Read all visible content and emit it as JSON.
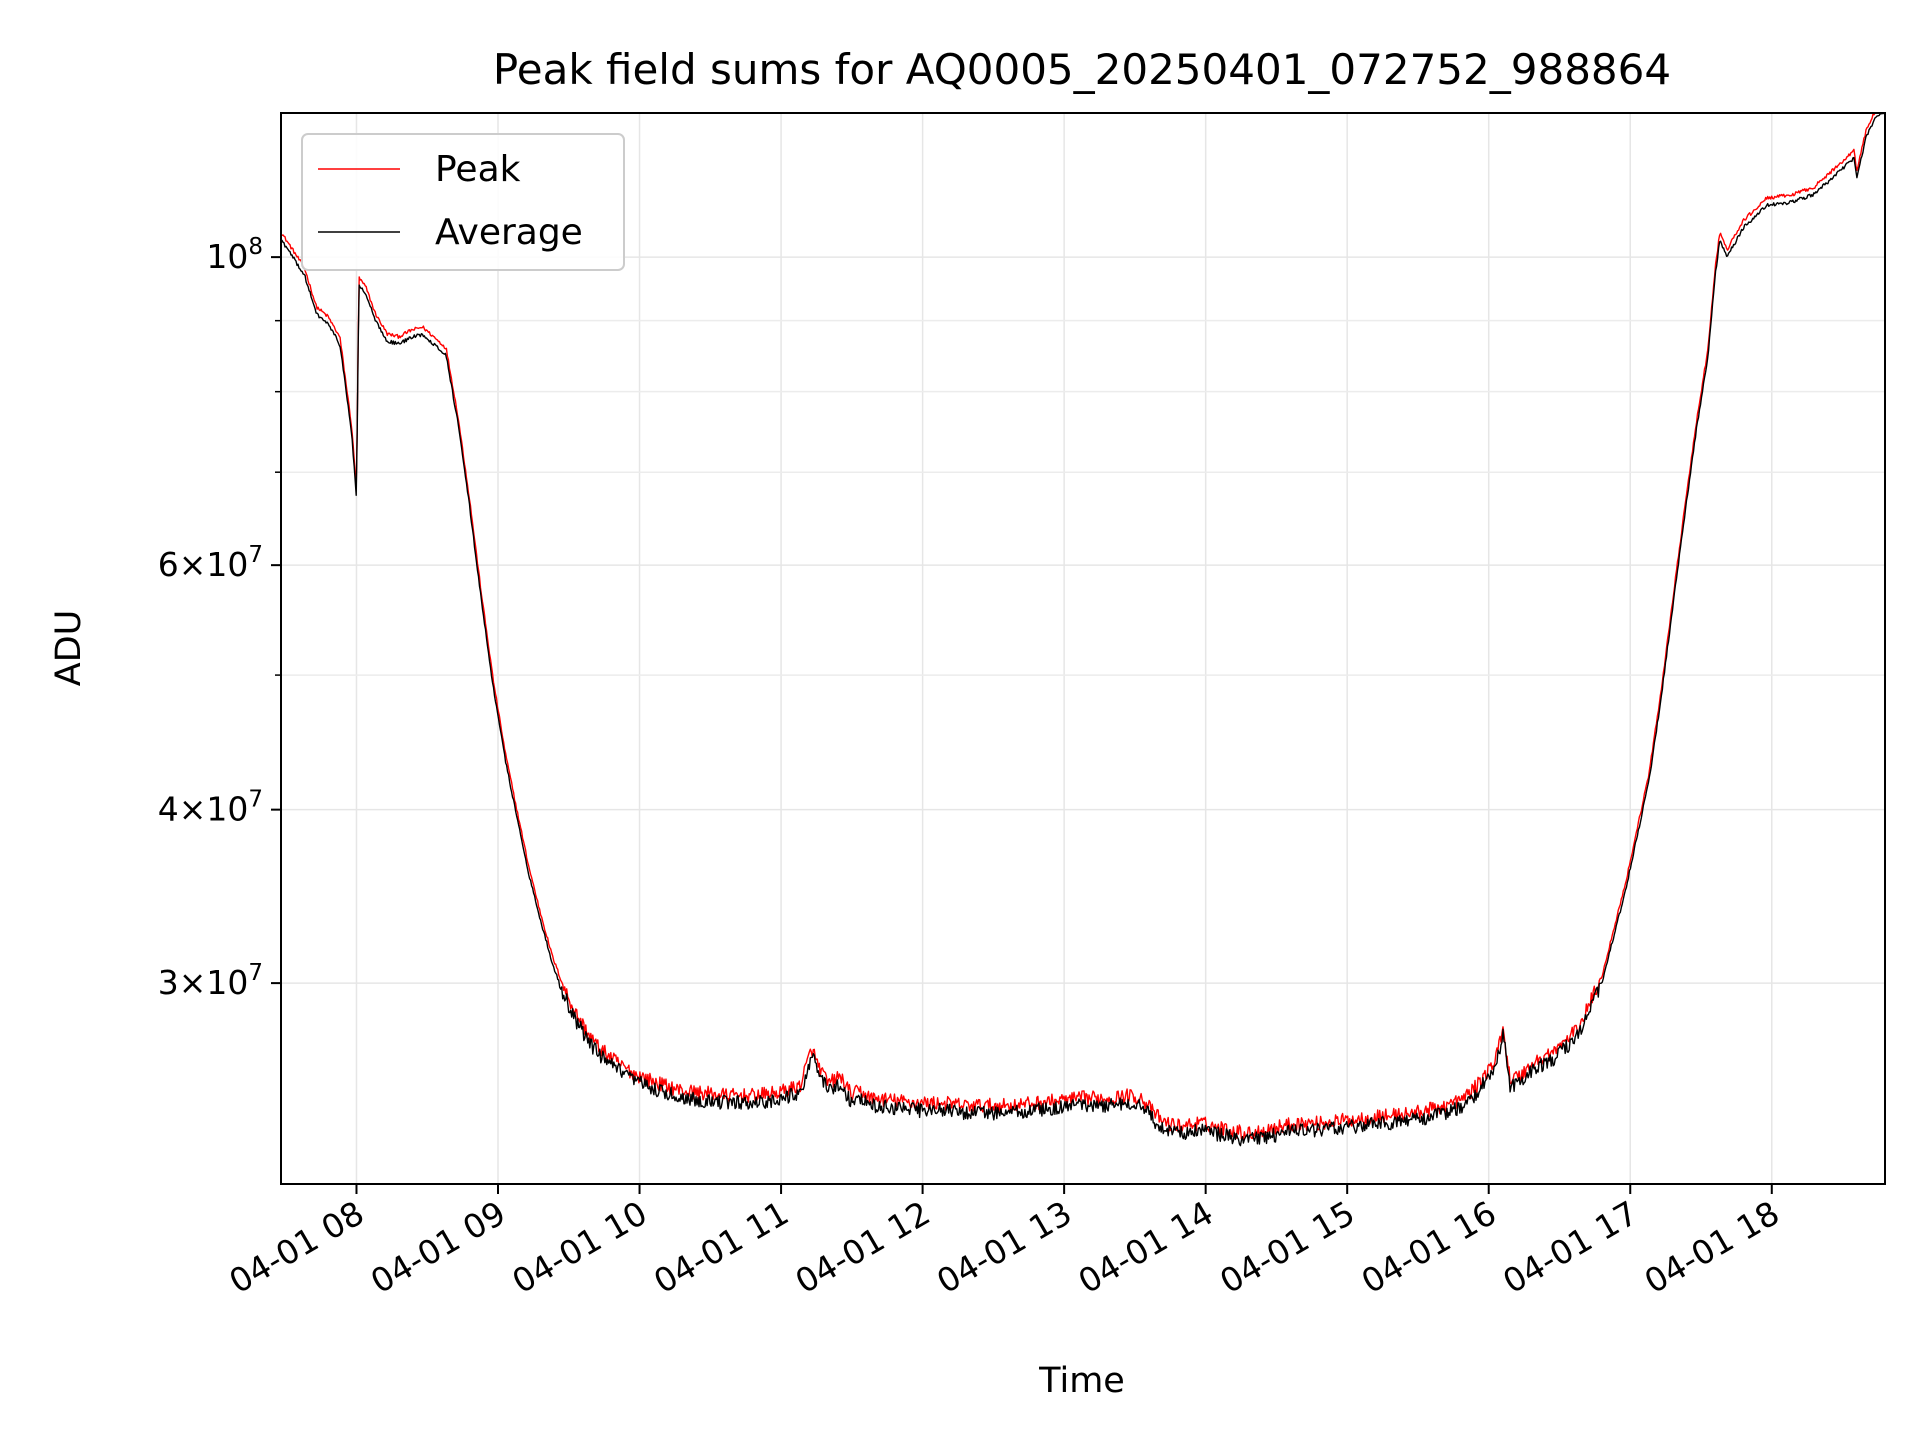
{
  "chart_data": {
    "type": "line",
    "title": "Peak field sums for AQ0005_20250401_072752_988864",
    "xlabel": "Time",
    "ylabel": "ADU",
    "x_axis_type": "datetime",
    "xlim": [
      "2025-04-01 07:28",
      "2025-04-01 18:48"
    ],
    "ylim": [
      21500000,
      127000000
    ],
    "yscale": "log",
    "grid": true,
    "legend_position": "upper-left",
    "x_ticks": [
      {
        "value": "2025-04-01 08:00",
        "label": "04-01 08"
      },
      {
        "value": "2025-04-01 09:00",
        "label": "04-01 09"
      },
      {
        "value": "2025-04-01 10:00",
        "label": "04-01 10"
      },
      {
        "value": "2025-04-01 11:00",
        "label": "04-01 11"
      },
      {
        "value": "2025-04-01 12:00",
        "label": "04-01 12"
      },
      {
        "value": "2025-04-01 13:00",
        "label": "04-01 13"
      },
      {
        "value": "2025-04-01 14:00",
        "label": "04-01 14"
      },
      {
        "value": "2025-04-01 15:00",
        "label": "04-01 15"
      },
      {
        "value": "2025-04-01 16:00",
        "label": "04-01 16"
      },
      {
        "value": "2025-04-01 17:00",
        "label": "04-01 17"
      },
      {
        "value": "2025-04-01 18:00",
        "label": "04-01 18"
      }
    ],
    "y_ticks": [
      {
        "value": 30000000,
        "base": "3",
        "exp": "7"
      },
      {
        "value": 40000000,
        "base": "4",
        "exp": "7"
      },
      {
        "value": 60000000,
        "base": "6",
        "exp": "7"
      },
      {
        "value": 100000000,
        "base": "",
        "exp": "8"
      }
    ],
    "y_minor_ticks": [
      50000000,
      70000000,
      80000000,
      90000000
    ],
    "series": [
      {
        "name": "Peak",
        "color": "#ff0000",
        "noise": 0.012,
        "offset": 1.012,
        "x": [
          "2025-04-01 07:28",
          "2025-04-01 07:33",
          "2025-04-01 07:38",
          "2025-04-01 07:43",
          "2025-04-01 07:48",
          "2025-04-01 07:53",
          "2025-04-01 07:58",
          "2025-04-01 08:00",
          "2025-04-01 08:01",
          "2025-04-01 08:04",
          "2025-04-01 08:08",
          "2025-04-01 08:13",
          "2025-04-01 08:18",
          "2025-04-01 08:23",
          "2025-04-01 08:28",
          "2025-04-01 08:33",
          "2025-04-01 08:38",
          "2025-04-01 08:43",
          "2025-04-01 08:48",
          "2025-04-01 08:53",
          "2025-04-01 08:58",
          "2025-04-01 09:03",
          "2025-04-01 09:08",
          "2025-04-01 09:13",
          "2025-04-01 09:18",
          "2025-04-01 09:23",
          "2025-04-01 09:28",
          "2025-04-01 09:33",
          "2025-04-01 09:38",
          "2025-04-01 09:43",
          "2025-04-01 09:48",
          "2025-04-01 09:53",
          "2025-04-01 09:58",
          "2025-04-01 10:08",
          "2025-04-01 10:18",
          "2025-04-01 10:28",
          "2025-04-01 10:38",
          "2025-04-01 10:48",
          "2025-04-01 10:58",
          "2025-04-01 11:08",
          "2025-04-01 11:13",
          "2025-04-01 11:16",
          "2025-04-01 11:20",
          "2025-04-01 11:25",
          "2025-04-01 11:30",
          "2025-04-01 11:33",
          "2025-04-01 11:38",
          "2025-04-01 11:48",
          "2025-04-01 11:58",
          "2025-04-01 12:08",
          "2025-04-01 12:18",
          "2025-04-01 12:28",
          "2025-04-01 12:38",
          "2025-04-01 12:48",
          "2025-04-01 12:58",
          "2025-04-01 13:08",
          "2025-04-01 13:18",
          "2025-04-01 13:28",
          "2025-04-01 13:33",
          "2025-04-01 13:38",
          "2025-04-01 13:43",
          "2025-04-01 13:48",
          "2025-04-01 13:58",
          "2025-04-01 14:08",
          "2025-04-01 14:18",
          "2025-04-01 14:28",
          "2025-04-01 14:38",
          "2025-04-01 14:48",
          "2025-04-01 14:58",
          "2025-04-01 15:08",
          "2025-04-01 15:18",
          "2025-04-01 15:28",
          "2025-04-01 15:38",
          "2025-04-01 15:48",
          "2025-04-01 15:55",
          "2025-04-01 16:03",
          "2025-04-01 16:06",
          "2025-04-01 16:09",
          "2025-04-01 16:13",
          "2025-04-01 16:18",
          "2025-04-01 16:28",
          "2025-04-01 16:38",
          "2025-04-01 16:48",
          "2025-04-01 16:58",
          "2025-04-01 17:08",
          "2025-04-01 17:13",
          "2025-04-01 17:18",
          "2025-04-01 17:23",
          "2025-04-01 17:28",
          "2025-04-01 17:33",
          "2025-04-01 17:36",
          "2025-04-01 17:38",
          "2025-04-01 17:41",
          "2025-04-01 17:48",
          "2025-04-01 17:58",
          "2025-04-01 18:08",
          "2025-04-01 18:18",
          "2025-04-01 18:28",
          "2025-04-01 18:35",
          "2025-04-01 18:36",
          "2025-04-01 18:40",
          "2025-04-01 18:44",
          "2025-04-01 18:48"
        ],
        "y": [
          103000000,
          100000000,
          97000000,
          91000000,
          89500000,
          86500000,
          74500000,
          67000000,
          95500000,
          94000000,
          90000000,
          87000000,
          86600000,
          87500000,
          88000000,
          86500000,
          85000000,
          76000000,
          66000000,
          56500000,
          49000000,
          43500000,
          39500000,
          36000000,
          33300000,
          31000000,
          29400000,
          28200000,
          27300000,
          26600000,
          26200000,
          25800000,
          25500000,
          25100000,
          24800000,
          24700000,
          24600000,
          24600000,
          24700000,
          25000000,
          26600000,
          25800000,
          25100000,
          25400000,
          24600000,
          24800000,
          24500000,
          24400000,
          24300000,
          24300000,
          24200000,
          24200000,
          24200000,
          24300000,
          24400000,
          24500000,
          24500000,
          24600000,
          24500000,
          23900000,
          23500000,
          23400000,
          23500000,
          23300000,
          23100000,
          23300000,
          23500000,
          23500000,
          23600000,
          23700000,
          23800000,
          23900000,
          24100000,
          24400000,
          25000000,
          26100000,
          27600000,
          25300000,
          25400000,
          25900000,
          26500000,
          27500000,
          30000000,
          35000000,
          42000000,
          48000000,
          56000000,
          65000000,
          75000000,
          85000000,
          97000000,
          103000000,
          100000000,
          105000000,
          109000000,
          109500000,
          111000000,
          115000000,
          118000000,
          114000000,
          122000000,
          126000000,
          127000000
        ]
      },
      {
        "name": "Average",
        "color": "#000000",
        "noise": 0.012,
        "offset": 1.0,
        "x": [
          "2025-04-01 07:28",
          "2025-04-01 07:33",
          "2025-04-01 07:38",
          "2025-04-01 07:43",
          "2025-04-01 07:48",
          "2025-04-01 07:53",
          "2025-04-01 07:58",
          "2025-04-01 08:00",
          "2025-04-01 08:01",
          "2025-04-01 08:04",
          "2025-04-01 08:08",
          "2025-04-01 08:13",
          "2025-04-01 08:18",
          "2025-04-01 08:23",
          "2025-04-01 08:28",
          "2025-04-01 08:33",
          "2025-04-01 08:38",
          "2025-04-01 08:43",
          "2025-04-01 08:48",
          "2025-04-01 08:53",
          "2025-04-01 08:58",
          "2025-04-01 09:03",
          "2025-04-01 09:08",
          "2025-04-01 09:13",
          "2025-04-01 09:18",
          "2025-04-01 09:23",
          "2025-04-01 09:28",
          "2025-04-01 09:33",
          "2025-04-01 09:38",
          "2025-04-01 09:43",
          "2025-04-01 09:48",
          "2025-04-01 09:53",
          "2025-04-01 09:58",
          "2025-04-01 10:08",
          "2025-04-01 10:18",
          "2025-04-01 10:28",
          "2025-04-01 10:38",
          "2025-04-01 10:48",
          "2025-04-01 10:58",
          "2025-04-01 11:08",
          "2025-04-01 11:13",
          "2025-04-01 11:16",
          "2025-04-01 11:20",
          "2025-04-01 11:25",
          "2025-04-01 11:30",
          "2025-04-01 11:33",
          "2025-04-01 11:38",
          "2025-04-01 11:48",
          "2025-04-01 11:58",
          "2025-04-01 12:08",
          "2025-04-01 12:18",
          "2025-04-01 12:28",
          "2025-04-01 12:38",
          "2025-04-01 12:48",
          "2025-04-01 12:58",
          "2025-04-01 13:08",
          "2025-04-01 13:18",
          "2025-04-01 13:28",
          "2025-04-01 13:33",
          "2025-04-01 13:38",
          "2025-04-01 13:43",
          "2025-04-01 13:48",
          "2025-04-01 13:58",
          "2025-04-01 14:08",
          "2025-04-01 14:18",
          "2025-04-01 14:28",
          "2025-04-01 14:38",
          "2025-04-01 14:48",
          "2025-04-01 14:58",
          "2025-04-01 15:08",
          "2025-04-01 15:18",
          "2025-04-01 15:28",
          "2025-04-01 15:38",
          "2025-04-01 15:48",
          "2025-04-01 15:55",
          "2025-04-01 16:03",
          "2025-04-01 16:06",
          "2025-04-01 16:09",
          "2025-04-01 16:13",
          "2025-04-01 16:18",
          "2025-04-01 16:28",
          "2025-04-01 16:38",
          "2025-04-01 16:48",
          "2025-04-01 16:58",
          "2025-04-01 17:08",
          "2025-04-01 17:13",
          "2025-04-01 17:18",
          "2025-04-01 17:23",
          "2025-04-01 17:28",
          "2025-04-01 17:33",
          "2025-04-01 17:36",
          "2025-04-01 17:38",
          "2025-04-01 17:41",
          "2025-04-01 17:48",
          "2025-04-01 17:58",
          "2025-04-01 18:08",
          "2025-04-01 18:18",
          "2025-04-01 18:28",
          "2025-04-01 18:35",
          "2025-04-01 18:36",
          "2025-04-01 18:40",
          "2025-04-01 18:44",
          "2025-04-01 18:48"
        ],
        "y": [
          103000000,
          100000000,
          97000000,
          91000000,
          89500000,
          86500000,
          74500000,
          67000000,
          95500000,
          94000000,
          90000000,
          87000000,
          86600000,
          87500000,
          88000000,
          86500000,
          85000000,
          76000000,
          66000000,
          56500000,
          49000000,
          43500000,
          39500000,
          36000000,
          33300000,
          31000000,
          29400000,
          28200000,
          27300000,
          26600000,
          26200000,
          25800000,
          25500000,
          25100000,
          24800000,
          24700000,
          24600000,
          24600000,
          24700000,
          25000000,
          26600000,
          25800000,
          25100000,
          25400000,
          24600000,
          24800000,
          24500000,
          24400000,
          24300000,
          24300000,
          24200000,
          24200000,
          24200000,
          24300000,
          24400000,
          24500000,
          24500000,
          24600000,
          24500000,
          23900000,
          23500000,
          23400000,
          23500000,
          23300000,
          23100000,
          23300000,
          23500000,
          23500000,
          23600000,
          23700000,
          23800000,
          23900000,
          24100000,
          24400000,
          25000000,
          26100000,
          27600000,
          25300000,
          25400000,
          25900000,
          26500000,
          27500000,
          30000000,
          35000000,
          42000000,
          48000000,
          56000000,
          65000000,
          75000000,
          85000000,
          97000000,
          103000000,
          100000000,
          105000000,
          109000000,
          109500000,
          111000000,
          115000000,
          118000000,
          114000000,
          122000000,
          126000000,
          127000000
        ]
      }
    ]
  }
}
